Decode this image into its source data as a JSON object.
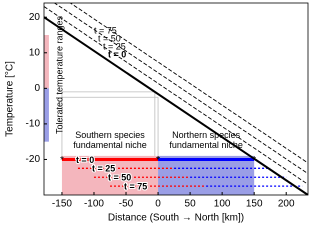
{
  "chart_data": {
    "type": "line",
    "xlabel": "Distance (South → North [km])",
    "ylabel": "Temperature [°C]",
    "xlim": [
      -178,
      234
    ],
    "ylim": [
      -30,
      24
    ],
    "xticks": [
      -150,
      -100,
      -50,
      0,
      50,
      100,
      150,
      200
    ],
    "yticks": [
      -20,
      -10,
      0,
      10,
      20
    ],
    "series": [
      {
        "name": "t = 0",
        "color": "#000000",
        "dashed": false,
        "x": [
          -178,
          234
        ],
        "values": [
          20,
          -30
        ]
      },
      {
        "name": "t = 25",
        "color": "#000000",
        "dashed": true,
        "x": [
          -178,
          234
        ],
        "values": [
          23,
          -27
        ]
      },
      {
        "name": "t = 50",
        "color": "#000000",
        "dashed": true,
        "x": [
          -178,
          234
        ],
        "values": [
          26,
          -24
        ]
      },
      {
        "name": "t = 75",
        "color": "#000000",
        "dashed": true,
        "x": [
          -178,
          234
        ],
        "values": [
          29,
          -21
        ]
      }
    ],
    "guides": [
      {
        "x": [
          -150,
          -150
        ],
        "values": [
          -19,
          -1
        ]
      },
      {
        "x": [
          -150,
          -5
        ],
        "values": [
          -1,
          -1
        ]
      },
      {
        "x": [
          -5,
          -5
        ],
        "values": [
          -19,
          -1
        ]
      },
      {
        "x": [
          -150,
          0
        ],
        "values": [
          -2.5,
          -2.5
        ]
      },
      {
        "x": [
          0,
          0
        ],
        "values": [
          -19,
          -2.5
        ]
      }
    ],
    "tolerated": {
      "label": "Tolerated temperature ranges",
      "bars": [
        {
          "color": "#f4b6bd",
          "x": -175,
          "range": [
            0,
            15
          ]
        },
        {
          "color": "#9a9ee6",
          "x": -175,
          "range": [
            -15,
            0
          ]
        }
      ]
    },
    "niches": [
      {
        "label": "Southern species fundamental niche",
        "color": "#f4b6bd",
        "x": [
          -150,
          0
        ],
        "range": [
          -30,
          -19
        ]
      },
      {
        "label": "Northern species fundamental niche",
        "color": "#9a9ee6",
        "x": [
          0,
          150
        ],
        "range": [
          -30,
          -19
        ]
      }
    ],
    "niche_shifts": [
      {
        "label": "t = 0",
        "y": -20,
        "southern": [
          -150,
          0
        ],
        "northern": [
          0,
          150
        ]
      },
      {
        "label": "t = 25",
        "y": -22.5,
        "southern": [
          -125,
          25
        ],
        "northern": [
          25,
          175
        ]
      },
      {
        "label": "t = 50",
        "y": -25,
        "southern": [
          -100,
          50
        ],
        "northern": [
          50,
          200
        ]
      },
      {
        "label": "t = 75",
        "y": -27.5,
        "southern": [
          -75,
          75
        ],
        "northern": [
          75,
          225
        ]
      }
    ],
    "shift_colors": {
      "southern": "#ff0000",
      "northern": "#0000ff"
    }
  }
}
